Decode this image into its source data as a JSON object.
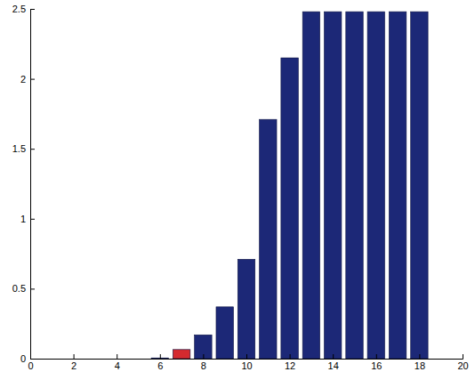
{
  "chart_data": {
    "type": "bar",
    "x": [
      1,
      2,
      3,
      4,
      5,
      6,
      7,
      8,
      9,
      10,
      11,
      12,
      13,
      14,
      15,
      16,
      17,
      18
    ],
    "values": [
      0,
      0,
      0,
      0,
      0,
      0.005,
      0.065,
      0.17,
      0.37,
      0.71,
      1.71,
      2.15,
      2.48,
      2.48,
      2.48,
      2.48,
      2.48,
      2.48
    ],
    "colors": [
      "#1c2877",
      "#1c2877",
      "#1c2877",
      "#1c2877",
      "#1c2877",
      "#1c2877",
      "#d42a2f",
      "#1c2877",
      "#1c2877",
      "#1c2877",
      "#1c2877",
      "#1c2877",
      "#1c2877",
      "#1c2877",
      "#1c2877",
      "#1c2877",
      "#1c2877",
      "#1c2877"
    ],
    "xlim": [
      0,
      20
    ],
    "xticks": [
      0,
      2,
      4,
      6,
      8,
      10,
      12,
      14,
      16,
      18,
      20
    ],
    "ylim": [
      0,
      2.5
    ],
    "yticks": [
      0,
      0.5,
      1,
      1.5,
      2,
      2.5
    ]
  }
}
